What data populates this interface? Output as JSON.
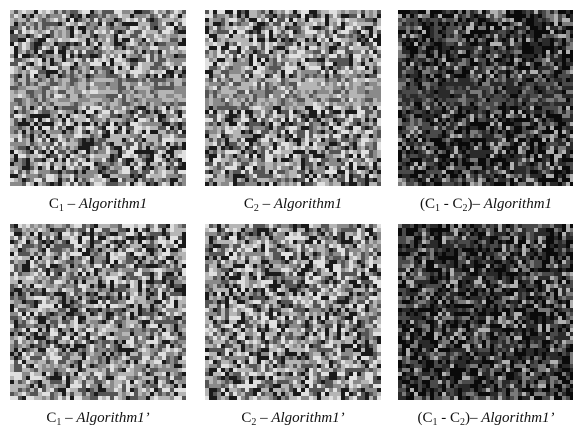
{
  "panels": [
    {
      "caption": [
        {
          "t": "C"
        },
        {
          "t": "1",
          "sub": true
        },
        {
          "t": " – "
        },
        {
          "t": "Algorithm1",
          "italic": true
        }
      ]
    },
    {
      "caption": [
        {
          "t": "C"
        },
        {
          "t": "2",
          "sub": true
        },
        {
          "t": " – "
        },
        {
          "t": "Algorithm1",
          "italic": true
        }
      ]
    },
    {
      "caption": [
        {
          "t": "(C"
        },
        {
          "t": "1",
          "sub": true
        },
        {
          "t": " - C"
        },
        {
          "t": "2",
          "sub": true
        },
        {
          "t": ")– "
        },
        {
          "t": "Algorithm1",
          "italic": true
        }
      ]
    },
    {
      "caption": [
        {
          "t": "C"
        },
        {
          "t": "1",
          "sub": true
        },
        {
          "t": " – "
        },
        {
          "t": "Algorithm1’",
          "italic": true
        }
      ]
    },
    {
      "caption": [
        {
          "t": "C"
        },
        {
          "t": "2",
          "sub": true
        },
        {
          "t": " – "
        },
        {
          "t": "Algorithm1’",
          "italic": true
        }
      ]
    },
    {
      "caption": [
        {
          "t": "(C"
        },
        {
          "t": "1",
          "sub": true
        },
        {
          "t": " - C"
        },
        {
          "t": "2",
          "sub": true
        },
        {
          "t": ")– "
        },
        {
          "t": "Algorithm1’",
          "italic": true
        }
      ]
    }
  ]
}
